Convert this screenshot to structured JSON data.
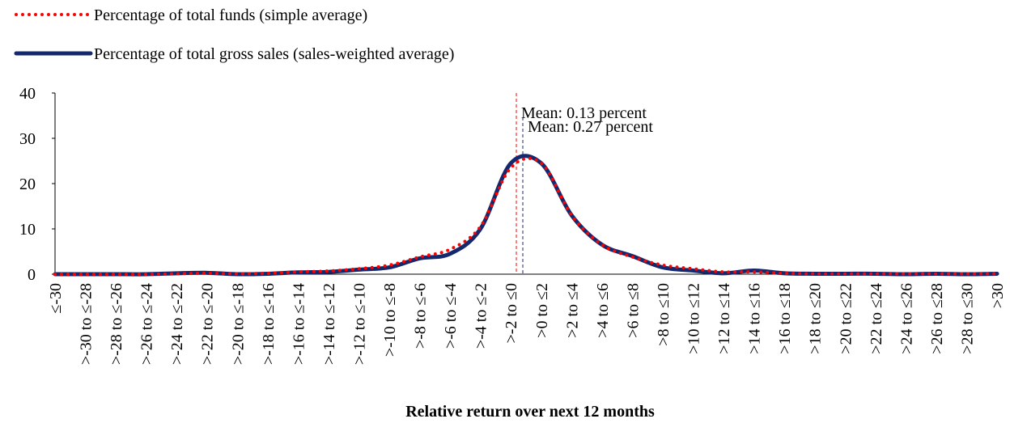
{
  "chart_data": {
    "type": "line",
    "x_label": "Relative return over next 12 months",
    "categories": [
      "≤-30",
      ">-30 to ≤-28",
      ">-28 to ≤-26",
      ">-26 to ≤-24",
      ">-24 to ≤-22",
      ">-22 to ≤-20",
      ">-20 to ≤-18",
      ">-18 to ≤-16",
      ">-16 to ≤-14",
      ">-14 to ≤-12",
      ">-12 to ≤-10",
      ">-10 to ≤-8",
      ">-8 to ≤-6",
      ">-6 to ≤-4",
      ">-4 to ≤-2",
      ">-2 to ≤0",
      ">0 to ≤2",
      ">2 to ≤4",
      ">4 to ≤6",
      ">6 to ≤8",
      ">8 to ≤10",
      ">10 to ≤12",
      ">12 to ≤14",
      ">14 to ≤16",
      ">16 to ≤18",
      ">18 to ≤20",
      ">20 to ≤22",
      ">22 to ≤24",
      ">24 to ≤26",
      ">26 to ≤28",
      ">28 to ≤30",
      ">30"
    ],
    "series": [
      {
        "name": "Percentage of total funds (simple average)",
        "color": "#ff0000",
        "style": "dotted",
        "values": [
          0,
          0,
          0,
          0,
          0.1,
          0.2,
          0.1,
          0.2,
          0.5,
          0.7,
          1.2,
          2,
          3.8,
          5.5,
          10.5,
          23.5,
          24.5,
          13,
          6.5,
          3.8,
          2,
          1.2,
          0.5,
          0.5,
          0.2,
          0.1,
          0.1,
          0.1,
          0.1,
          0.1,
          0.1,
          0.1
        ]
      },
      {
        "name": "Percentage of total gross sales (sales-weighted average)",
        "color": "#14286e",
        "style": "solid",
        "values": [
          0,
          0,
          0,
          0,
          0.2,
          0.3,
          0,
          0.1,
          0.4,
          0.5,
          1,
          1.5,
          3.5,
          4.5,
          10,
          24.5,
          24.5,
          13,
          6.5,
          4,
          1.5,
          0.8,
          0.2,
          0.8,
          0.2,
          0.1,
          0.1,
          0.1,
          0,
          0.1,
          0,
          0.1
        ]
      }
    ],
    "annotations": [
      {
        "text": "Mean: 0.13 percent",
        "color": "#ff0000"
      },
      {
        "text": "Mean: 0.27 percent",
        "color": "#14286e"
      }
    ],
    "ylim": [
      0,
      40
    ],
    "yticks": [
      0,
      10,
      20,
      30,
      40
    ]
  }
}
